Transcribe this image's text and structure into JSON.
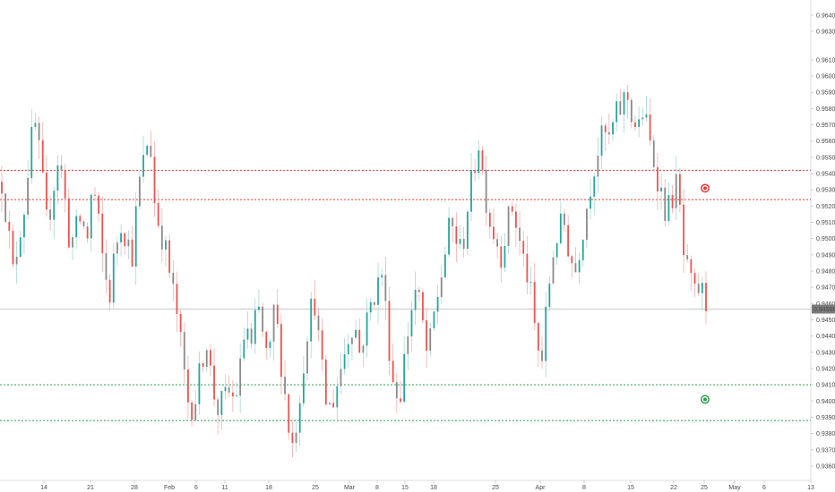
{
  "chart_data": {
    "type": "candlestick",
    "title": "",
    "xlabel": "",
    "ylabel": "",
    "ylim": [
      0.9355,
      0.965
    ],
    "y_ticks": [
      "0.96400",
      "0.96300",
      "0.96100",
      "0.96000",
      "0.95900",
      "0.95800",
      "0.95700",
      "0.95600",
      "0.95500",
      "0.95400",
      "0.95300",
      "0.95200",
      "0.95100",
      "0.95000",
      "0.94900",
      "0.94800",
      "0.94700",
      "0.94600",
      "0.94500",
      "0.94400",
      "0.94300",
      "0.94200",
      "0.94100",
      "0.94000",
      "0.93900",
      "0.93800",
      "0.93700",
      "0.93600"
    ],
    "x_ticks": [
      "14",
      "21",
      "28",
      "Feb",
      "6",
      "11",
      "18",
      "25",
      "Mar",
      "8",
      "15",
      "18",
      "25",
      "Apr",
      "8",
      "15",
      "22",
      "25",
      "May",
      "6",
      "13"
    ],
    "last_price": "0.94566",
    "last_price_value": 0.94566,
    "horizontal_lines": [
      {
        "name": "resistance-upper",
        "value": 0.9542,
        "color": "#e53935",
        "style": "dotted"
      },
      {
        "name": "resistance-lower",
        "value": 0.9524,
        "color": "#e53935",
        "style": "dotted"
      },
      {
        "name": "support-upper",
        "value": 0.941,
        "color": "#2e9e4e",
        "style": "dotted"
      },
      {
        "name": "support-lower",
        "value": 0.9388,
        "color": "#2e9e4e",
        "style": "dotted"
      }
    ],
    "price_line": {
      "value": 0.94566,
      "color": "#c8c8c8"
    },
    "markers": [
      {
        "name": "sell-marker-icon",
        "value": 0.9531,
        "color": "#e53935"
      },
      {
        "name": "buy-marker-icon",
        "value": 0.9401,
        "color": "#2e9e4e"
      }
    ],
    "series_anchor_points": [
      [
        0.9535
      ],
      [
        0.951
      ],
      [
        0.9478
      ],
      [
        0.9502
      ],
      [
        0.952
      ],
      [
        0.9558
      ],
      [
        0.957
      ],
      [
        0.954
      ],
      [
        0.9506
      ],
      [
        0.953
      ],
      [
        0.9552
      ],
      [
        0.9528
      ],
      [
        0.9495
      ],
      [
        0.9505
      ],
      [
        0.9513
      ],
      [
        0.9498
      ],
      [
        0.9535
      ],
      [
        0.951
      ],
      [
        0.948
      ],
      [
        0.9465
      ],
      [
        0.9495
      ],
      [
        0.951
      ],
      [
        0.95
      ],
      [
        0.949
      ],
      [
        0.953
      ],
      [
        0.9548
      ],
      [
        0.9566
      ],
      [
        0.9518
      ],
      [
        0.9505
      ],
      [
        0.949
      ],
      [
        0.947
      ],
      [
        0.945
      ],
      [
        0.942
      ],
      [
        0.9395
      ],
      [
        0.94
      ],
      [
        0.942
      ],
      [
        0.944
      ],
      [
        0.941
      ],
      [
        0.9395
      ],
      [
        0.94
      ],
      [
        0.9405
      ],
      [
        0.94
      ],
      [
        0.942
      ],
      [
        0.945
      ],
      [
        0.943
      ],
      [
        0.946
      ],
      [
        0.944
      ],
      [
        0.942
      ],
      [
        0.946
      ],
      [
        0.943
      ],
      [
        0.94
      ],
      [
        0.937
      ],
      [
        0.939
      ],
      [
        0.942
      ],
      [
        0.945
      ],
      [
        0.9465
      ],
      [
        0.943
      ],
      [
        0.94
      ],
      [
        0.9395
      ],
      [
        0.941
      ],
      [
        0.9425
      ],
      [
        0.944
      ],
      [
        0.945
      ],
      [
        0.943
      ],
      [
        0.9445
      ],
      [
        0.946
      ],
      [
        0.947
      ],
      [
        0.948
      ],
      [
        0.944
      ],
      [
        0.941
      ],
      [
        0.94
      ],
      [
        0.943
      ],
      [
        0.9455
      ],
      [
        0.947
      ],
      [
        0.945
      ],
      [
        0.9425
      ],
      [
        0.945
      ],
      [
        0.947
      ],
      [
        0.949
      ],
      [
        0.951
      ],
      [
        0.95
      ],
      [
        0.949
      ],
      [
        0.952
      ],
      [
        0.954
      ],
      [
        0.956
      ],
      [
        0.953
      ],
      [
        0.951
      ],
      [
        0.95
      ],
      [
        0.949
      ],
      [
        0.951
      ],
      [
        0.952
      ],
      [
        0.95
      ],
      [
        0.9485
      ],
      [
        0.947
      ],
      [
        0.944
      ],
      [
        0.942
      ],
      [
        0.946
      ],
      [
        0.949
      ],
      [
        0.9505
      ],
      [
        0.951
      ],
      [
        0.949
      ],
      [
        0.948
      ],
      [
        0.95
      ],
      [
        0.952
      ],
      [
        0.954
      ],
      [
        0.9555
      ],
      [
        0.9565
      ],
      [
        0.956
      ],
      [
        0.9575
      ],
      [
        0.958
      ],
      [
        0.959
      ],
      [
        0.9575
      ],
      [
        0.9565
      ],
      [
        0.958
      ],
      [
        0.956
      ],
      [
        0.9545
      ],
      [
        0.953
      ],
      [
        0.9515
      ],
      [
        0.9525
      ],
      [
        0.9535
      ],
      [
        0.949
      ],
      [
        0.9475
      ],
      [
        0.9465
      ],
      [
        0.947
      ],
      [
        0.946
      ]
    ]
  }
}
